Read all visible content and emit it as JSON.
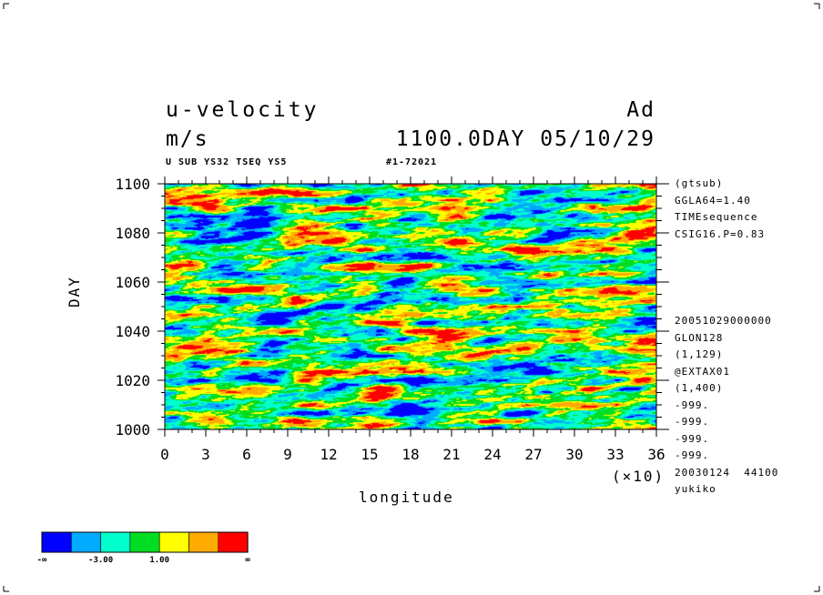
{
  "header": {
    "var_name": "u-velocity",
    "units": "m/s",
    "right_tag": "Ad",
    "time_label": "1100.0DAY 05/10/29",
    "sub_left": "U SUB YS32 TSEQ YS5",
    "sub_right": "#1-72021"
  },
  "side_info_top": [
    "(gtsub)",
    "GGLA64=1.40",
    "TIMEsequence",
    "CSIG16.P=0.83"
  ],
  "side_info_bottom": [
    "20051029000000",
    "GLON128",
    "(1,129)",
    "@EXTAX01",
    "(1,400)",
    "-999.",
    "-999.",
    "-999.",
    "-999.",
    "20030124  44100",
    "yukiko"
  ],
  "colors": {
    "levels": [
      "#0000ff",
      "#00aaff",
      "#00ffcc",
      "#00dd22",
      "#ffff00",
      "#ffaa00",
      "#ff0000"
    ]
  },
  "colorbar": {
    "labels": [
      "-∞",
      "-3.00",
      "1.00",
      "∞"
    ]
  },
  "chart_data": {
    "type": "heatmap",
    "title": "u-velocity",
    "xlabel": "longitude",
    "ylabel": "DAY",
    "x_multiplier": "(×10)",
    "xlim": [
      0,
      36
    ],
    "ylim": [
      1000,
      1100
    ],
    "x_ticks": [
      0,
      3,
      6,
      9,
      12,
      15,
      18,
      21,
      24,
      27,
      30,
      33,
      36
    ],
    "y_ticks": [
      1000,
      1020,
      1040,
      1060,
      1080,
      1100
    ],
    "color_levels": 7,
    "grid": false,
    "legend": "bottom-left"
  }
}
